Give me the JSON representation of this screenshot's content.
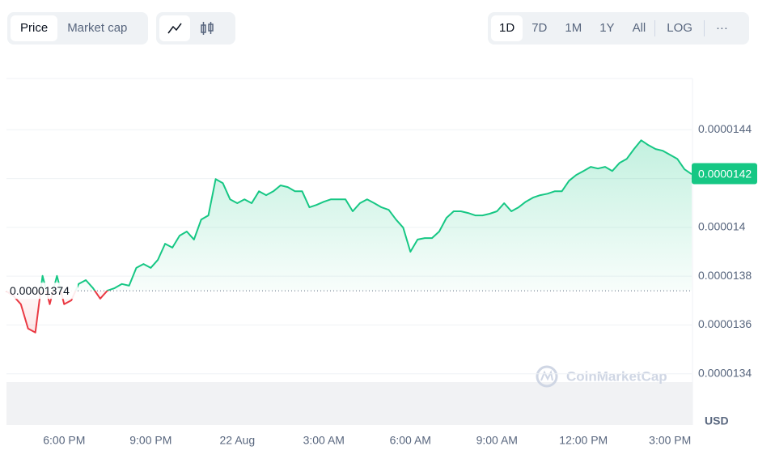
{
  "ui": {
    "tabs": [
      "Price",
      "Market cap"
    ],
    "ranges": [
      "1D",
      "7D",
      "1M",
      "1Y",
      "All",
      "LOG"
    ],
    "more": "···",
    "watermark": "CoinMarketCap",
    "currency": "USD"
  },
  "chart_data": {
    "type": "line",
    "values": [
      1.3738e-05,
      1.3718e-05,
      1.3685e-05,
      1.3585e-05,
      1.3569e-05,
      1.3801e-05,
      1.3685e-05,
      1.3801e-05,
      1.3685e-05,
      1.3701e-05,
      1.3768e-05,
      1.3784e-05,
      1.3751e-05,
      1.3708e-05,
      1.3741e-05,
      1.3751e-05,
      1.3768e-05,
      1.3761e-05,
      1.3834e-05,
      1.385e-05,
      1.3834e-05,
      1.3867e-05,
      1.3933e-05,
      1.3917e-05,
      1.3966e-05,
      1.3983e-05,
      1.395e-05,
      1.4032e-05,
      1.4049e-05,
      1.4198e-05,
      1.4181e-05,
      1.4115e-05,
      1.4099e-05,
      1.4115e-05,
      1.4099e-05,
      1.4148e-05,
      1.4132e-05,
      1.4148e-05,
      1.4172e-05,
      1.4165e-05,
      1.4148e-05,
      1.4148e-05,
      1.4082e-05,
      1.4092e-05,
      1.4105e-05,
      1.4115e-05,
      1.4115e-05,
      1.4115e-05,
      1.4066e-05,
      1.4099e-05,
      1.4115e-05,
      1.4099e-05,
      1.4082e-05,
      1.4072e-05,
      1.4032e-05,
      1.3999e-05,
      1.39e-05,
      1.395e-05,
      1.3956e-05,
      1.3956e-05,
      1.3983e-05,
      1.4039e-05,
      1.4066e-05,
      1.4066e-05,
      1.4059e-05,
      1.4049e-05,
      1.4049e-05,
      1.4056e-05,
      1.4066e-05,
      1.4099e-05,
      1.4066e-05,
      1.4082e-05,
      1.4105e-05,
      1.4122e-05,
      1.4132e-05,
      1.4138e-05,
      1.4148e-05,
      1.4148e-05,
      1.4191e-05,
      1.4215e-05,
      1.4231e-05,
      1.4248e-05,
      1.4241e-05,
      1.4248e-05,
      1.4231e-05,
      1.4264e-05,
      1.4281e-05,
      1.4321e-05,
      1.4357e-05,
      1.4337e-05,
      1.4321e-05,
      1.4314e-05,
      1.4297e-05,
      1.4281e-05,
      1.4238e-05,
      1.4218e-05
    ],
    "baseline": 1.374e-05,
    "current_price": 1.422e-05,
    "current_price_label": "0.0000142",
    "up_color": "#16c784",
    "down_color": "#ea3943",
    "xlim": [
      0,
      95
    ],
    "xticks": [
      {
        "value": 8,
        "label": "6:00 PM"
      },
      {
        "value": 20,
        "label": "9:00 PM"
      },
      {
        "value": 32,
        "label": "22 Aug"
      },
      {
        "value": 44,
        "label": "3:00 AM"
      },
      {
        "value": 56,
        "label": "6:00 AM"
      },
      {
        "value": 68,
        "label": "9:00 AM"
      },
      {
        "value": 80,
        "label": "12:00 PM"
      },
      {
        "value": 92,
        "label": "3:00 PM"
      }
    ],
    "ylim": [
      1.319e-05,
      1.461e-05
    ],
    "yticks": [
      1.34e-05,
      1.36e-05,
      1.38e-05,
      1.4e-05,
      1.42e-05,
      1.44e-05
    ],
    "grid": true
  }
}
